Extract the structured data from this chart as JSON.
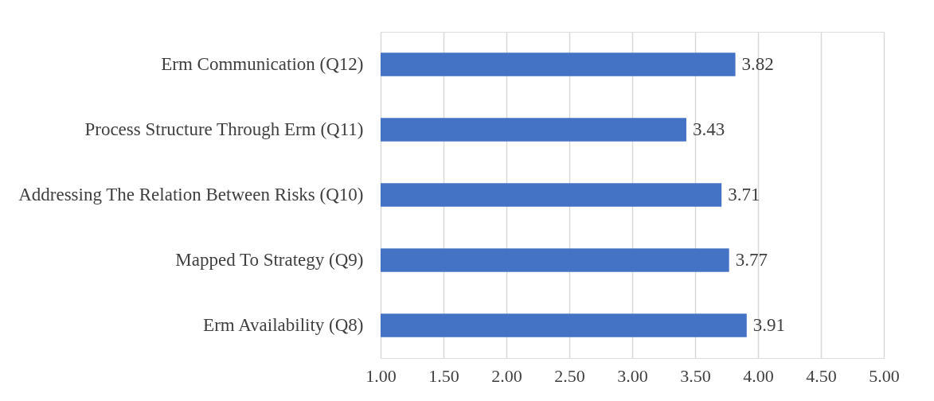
{
  "chart_data": {
    "type": "bar",
    "orientation": "horizontal",
    "categories": [
      "Erm Communication (Q12)",
      "Process Structure Through Erm (Q11)",
      "Addressing The Relation Between Risks (Q10)",
      "Mapped To Strategy (Q9)",
      "Erm Availability (Q8)"
    ],
    "values": [
      3.82,
      3.43,
      3.71,
      3.77,
      3.91
    ],
    "color": "#4472c4",
    "xlim": [
      1,
      5
    ],
    "xticks": [
      {
        "value": 1,
        "label": "1.00"
      },
      {
        "value": 1.5,
        "label": "1.50"
      },
      {
        "value": 2,
        "label": "2.00"
      },
      {
        "value": 2.5,
        "label": "2.50"
      },
      {
        "value": 3,
        "label": "3.00"
      },
      {
        "value": 3.5,
        "label": "3.50"
      },
      {
        "value": 4,
        "label": "4.00"
      },
      {
        "value": 4.5,
        "label": "4.50"
      },
      {
        "value": 5,
        "label": "5.00"
      }
    ],
    "grid": "x",
    "data_labels": true
  }
}
